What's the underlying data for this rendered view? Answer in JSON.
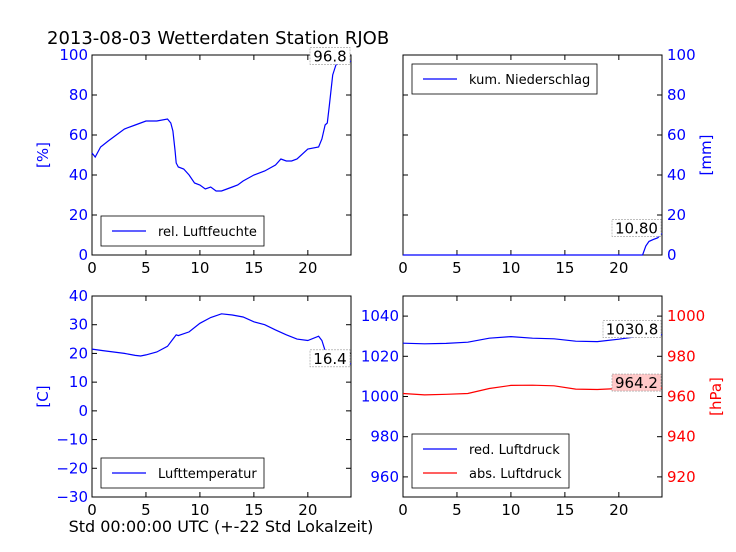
{
  "figure": {
    "title": "2013-08-03 Wetterdaten Station RJOB",
    "xlabel": "Std 00:00:00 UTC (+-22 Std Lokalzeit)"
  },
  "colors": {
    "blue": "#0000ff",
    "red": "#ff0000",
    "axis": "#000000"
  },
  "chart_data": [
    {
      "type": "line",
      "panel": "humidity",
      "ylabel": "[%]",
      "xlim": [
        0,
        24
      ],
      "ylim": [
        0,
        100
      ],
      "xticks": [
        "0",
        "5",
        "10",
        "15",
        "20"
      ],
      "yticks": [
        "0",
        "20",
        "40",
        "60",
        "80",
        "100"
      ],
      "legend": {
        "position": "bottom-left"
      },
      "last_value_label": "96.8",
      "series": [
        {
          "name": "rel. Luftfeuchte",
          "color": "#0000ff",
          "x": [
            0,
            0.3,
            0.8,
            1.5,
            2,
            3,
            4,
            5,
            6,
            7,
            7.3,
            7.5,
            7.7,
            7.8,
            8,
            8.5,
            9,
            9.5,
            10,
            10.5,
            11,
            11.5,
            12,
            12.5,
            13,
            13.5,
            14,
            15,
            16,
            17,
            17.5,
            18,
            18.5,
            19,
            20,
            21,
            21.3,
            21.6,
            21.8,
            22,
            22.3,
            22.6,
            23,
            23.5,
            24
          ],
          "y": [
            51,
            49,
            54,
            57,
            59,
            63,
            65,
            67,
            67,
            68,
            66,
            62,
            52,
            46,
            44,
            43,
            40,
            36,
            35,
            33,
            34,
            32,
            32,
            33,
            34,
            35,
            37,
            40,
            42,
            45,
            48,
            47,
            47,
            48,
            53,
            54,
            58,
            65,
            66,
            75,
            90,
            95,
            96,
            96.8,
            96.8
          ]
        }
      ]
    },
    {
      "type": "line",
      "panel": "precipitation",
      "ylabel": "[mm]",
      "xlim": [
        0,
        24
      ],
      "ylim": [
        0,
        100
      ],
      "xticks": [
        "0",
        "5",
        "10",
        "15",
        "20"
      ],
      "yticks": [
        "0",
        "20",
        "40",
        "60",
        "80",
        "100"
      ],
      "legend": {
        "position": "top-left"
      },
      "last_value_label": "10.80",
      "series": [
        {
          "name": "kum. Niederschlag",
          "color": "#0000ff",
          "x": [
            0,
            20,
            22.2,
            22.5,
            22.8,
            23.2,
            23.6,
            24
          ],
          "y": [
            0,
            0,
            0,
            4.5,
            6.8,
            7.8,
            8.6,
            10.8
          ]
        }
      ]
    },
    {
      "type": "line",
      "panel": "temperature",
      "ylabel": "[C]",
      "xlim": [
        0,
        24
      ],
      "ylim": [
        -30,
        40
      ],
      "xticks": [
        "0",
        "5",
        "10",
        "15",
        "20"
      ],
      "yticks": [
        "−30",
        "−20",
        "−10",
        "0",
        "10",
        "20",
        "30",
        "40"
      ],
      "legend": {
        "position": "bottom-left"
      },
      "last_value_label": "16.4",
      "series": [
        {
          "name": "Lufttemperatur",
          "color": "#0000ff",
          "x": [
            0,
            1,
            2,
            3,
            4,
            4.5,
            5,
            6,
            7,
            7.5,
            7.8,
            8,
            9,
            10,
            11,
            12,
            13,
            14,
            15,
            16,
            17,
            18,
            19,
            20,
            21,
            21.3,
            21.6,
            22,
            23,
            24
          ],
          "y": [
            21.5,
            21,
            20.5,
            20,
            19.3,
            19.1,
            19.5,
            20.5,
            22.5,
            25,
            26.5,
            26.2,
            27.5,
            30.5,
            32.5,
            33.8,
            33.4,
            32.7,
            31,
            30,
            28.2,
            26.5,
            25,
            24.5,
            26,
            24.5,
            21,
            18,
            16.5,
            16.4
          ]
        }
      ]
    },
    {
      "type": "line",
      "panel": "pressure",
      "ylabel_right": "[hPa]",
      "xlim": [
        0,
        24
      ],
      "ylim_left": [
        950,
        1050
      ],
      "ylim_right": [
        910,
        1010
      ],
      "xticks": [
        "0",
        "5",
        "10",
        "15",
        "20"
      ],
      "yticks_left": [
        "960",
        "980",
        "1000",
        "1020",
        "1040"
      ],
      "yticks_right": [
        "920",
        "940",
        "960",
        "980",
        "1000"
      ],
      "legend": {
        "position": "bottom-left"
      },
      "last_value_labels": [
        "1030.8",
        "964.2"
      ],
      "series": [
        {
          "name": "red. Luftdruck",
          "color": "#0000ff",
          "axis": "left",
          "x": [
            0,
            2,
            4,
            6,
            8,
            10,
            12,
            14,
            16,
            18,
            20,
            22,
            24
          ],
          "y": [
            1026.5,
            1026.2,
            1026.4,
            1027,
            1029,
            1029.8,
            1029,
            1028.7,
            1027.5,
            1027.3,
            1028.5,
            1030,
            1030.8
          ]
        },
        {
          "name": "abs. Luftdruck",
          "color": "#ff0000",
          "axis": "right",
          "x": [
            0,
            2,
            4,
            6,
            8,
            10,
            12,
            14,
            16,
            18,
            20,
            22,
            24
          ],
          "y": [
            961.5,
            960.8,
            961.1,
            961.5,
            964,
            965.5,
            965.6,
            965.3,
            963.7,
            963.5,
            964,
            964.2,
            964.2
          ]
        }
      ]
    }
  ]
}
